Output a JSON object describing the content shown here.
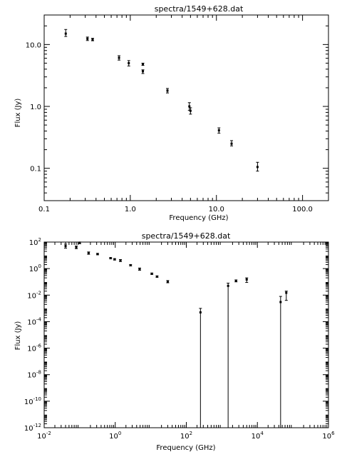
{
  "chart_data": [
    {
      "type": "scatter",
      "title": "spectra/1549+628.dat",
      "xlabel": "Frequency (GHz)",
      "ylabel": "Flux (Jy)",
      "xscale": "log",
      "yscale": "log",
      "xlim": [
        0.1,
        200
      ],
      "ylim": [
        0.03,
        30
      ],
      "grid": false,
      "xticks": [
        {
          "value": 0.1,
          "label": "0.1"
        },
        {
          "value": 1,
          "label": "1.0"
        },
        {
          "value": 10,
          "label": "10.0"
        },
        {
          "value": 100,
          "label": "100.0"
        }
      ],
      "yticks": [
        {
          "value": 0.1,
          "label": "0.1"
        },
        {
          "value": 1,
          "label": "1.0"
        },
        {
          "value": 10,
          "label": "10.0"
        }
      ],
      "points": [
        {
          "x": 0.178,
          "y": 15.0,
          "ylo": 13.5,
          "yhi": 17.5
        },
        {
          "x": 0.318,
          "y": 12.4,
          "ylo": 11.6,
          "yhi": 13.2
        },
        {
          "x": 0.365,
          "y": 12.0,
          "ylo": 11.5,
          "yhi": 12.6
        },
        {
          "x": 0.74,
          "y": 6.1,
          "ylo": 5.6,
          "yhi": 6.6
        },
        {
          "x": 0.96,
          "y": 5.0,
          "ylo": 4.5,
          "yhi": 5.5
        },
        {
          "x": 1.4,
          "y": 4.8,
          "ylo": 4.6,
          "yhi": 5.0
        },
        {
          "x": 1.4,
          "y": 3.7,
          "ylo": 3.4,
          "yhi": 3.9
        },
        {
          "x": 2.7,
          "y": 1.8,
          "ylo": 1.65,
          "yhi": 1.95
        },
        {
          "x": 4.85,
          "y": 1.0,
          "ylo": 0.86,
          "yhi": 1.15
        },
        {
          "x": 5.0,
          "y": 0.85,
          "ylo": 0.75,
          "yhi": 0.95
        },
        {
          "x": 10.7,
          "y": 0.41,
          "ylo": 0.37,
          "yhi": 0.45
        },
        {
          "x": 15.0,
          "y": 0.25,
          "ylo": 0.23,
          "yhi": 0.28
        },
        {
          "x": 30.0,
          "y": 0.105,
          "ylo": 0.09,
          "yhi": 0.125
        }
      ]
    },
    {
      "type": "scatter",
      "title": "spectra/1549+628.dat",
      "xlabel": "Frequency (GHz)",
      "ylabel": "Flux (Jy)",
      "xscale": "log",
      "yscale": "log",
      "xlim": [
        0.01,
        1000000
      ],
      "ylim": [
        1e-12,
        100
      ],
      "grid": false,
      "xticks": [
        {
          "value": 0.01,
          "base": "10",
          "exp": "-2"
        },
        {
          "value": 1,
          "base": "10",
          "exp": "0"
        },
        {
          "value": 100,
          "base": "10",
          "exp": "2"
        },
        {
          "value": 10000,
          "base": "10",
          "exp": "4"
        },
        {
          "value": 1000000,
          "base": "10",
          "exp": "6"
        }
      ],
      "yticks": [
        {
          "value": 1e-12,
          "base": "10",
          "exp": "-12"
        },
        {
          "value": 1e-10,
          "base": "10",
          "exp": "-10"
        },
        {
          "value": 1e-08,
          "base": "10",
          "exp": "-8"
        },
        {
          "value": 1e-06,
          "base": "10",
          "exp": "-6"
        },
        {
          "value": 0.0001,
          "base": "10",
          "exp": "-4"
        },
        {
          "value": 0.01,
          "base": "10",
          "exp": "-2"
        },
        {
          "value": 1,
          "base": "10",
          "exp": "0"
        },
        {
          "value": 100,
          "base": "10",
          "exp": "2"
        }
      ],
      "points": [
        {
          "x": 0.04,
          "y": 50,
          "ylo": 35,
          "yhi": 70
        },
        {
          "x": 0.08,
          "y": 40,
          "ylo": 32,
          "yhi": 50
        },
        {
          "x": 0.1,
          "y": 90,
          "ylo": 75,
          "yhi": 105
        },
        {
          "x": 0.178,
          "y": 15.0,
          "ylo": 12,
          "yhi": 18
        },
        {
          "x": 0.318,
          "y": 12.4,
          "ylo": 11,
          "yhi": 14
        },
        {
          "x": 0.74,
          "y": 6.1,
          "ylo": 5.5,
          "yhi": 6.8
        },
        {
          "x": 0.96,
          "y": 5.0,
          "ylo": 4.4,
          "yhi": 5.6
        },
        {
          "x": 1.4,
          "y": 4.0,
          "ylo": 3.4,
          "yhi": 4.8
        },
        {
          "x": 2.7,
          "y": 1.8,
          "ylo": 1.6,
          "yhi": 2.0
        },
        {
          "x": 4.85,
          "y": 0.9,
          "ylo": 0.75,
          "yhi": 1.1
        },
        {
          "x": 10.7,
          "y": 0.41,
          "ylo": 0.36,
          "yhi": 0.46
        },
        {
          "x": 15.0,
          "y": 0.25,
          "ylo": 0.22,
          "yhi": 0.28
        },
        {
          "x": 30.0,
          "y": 0.105,
          "ylo": 0.085,
          "yhi": 0.125
        },
        {
          "x": 250,
          "y": 0.0005,
          "ylo": 1e-12,
          "yhi": 0.001
        },
        {
          "x": 1500,
          "y": 0.05,
          "ylo": 1e-12,
          "yhi": 0.08
        },
        {
          "x": 2500,
          "y": 0.12,
          "ylo": 0.1,
          "yhi": 0.14
        },
        {
          "x": 5000,
          "y": 0.15,
          "ylo": 0.09,
          "yhi": 0.2
        },
        {
          "x": 45000,
          "y": 0.003,
          "ylo": 1e-12,
          "yhi": 0.008
        },
        {
          "x": 65000,
          "y": 0.015,
          "ylo": 0.004,
          "yhi": 0.02
        }
      ]
    }
  ]
}
